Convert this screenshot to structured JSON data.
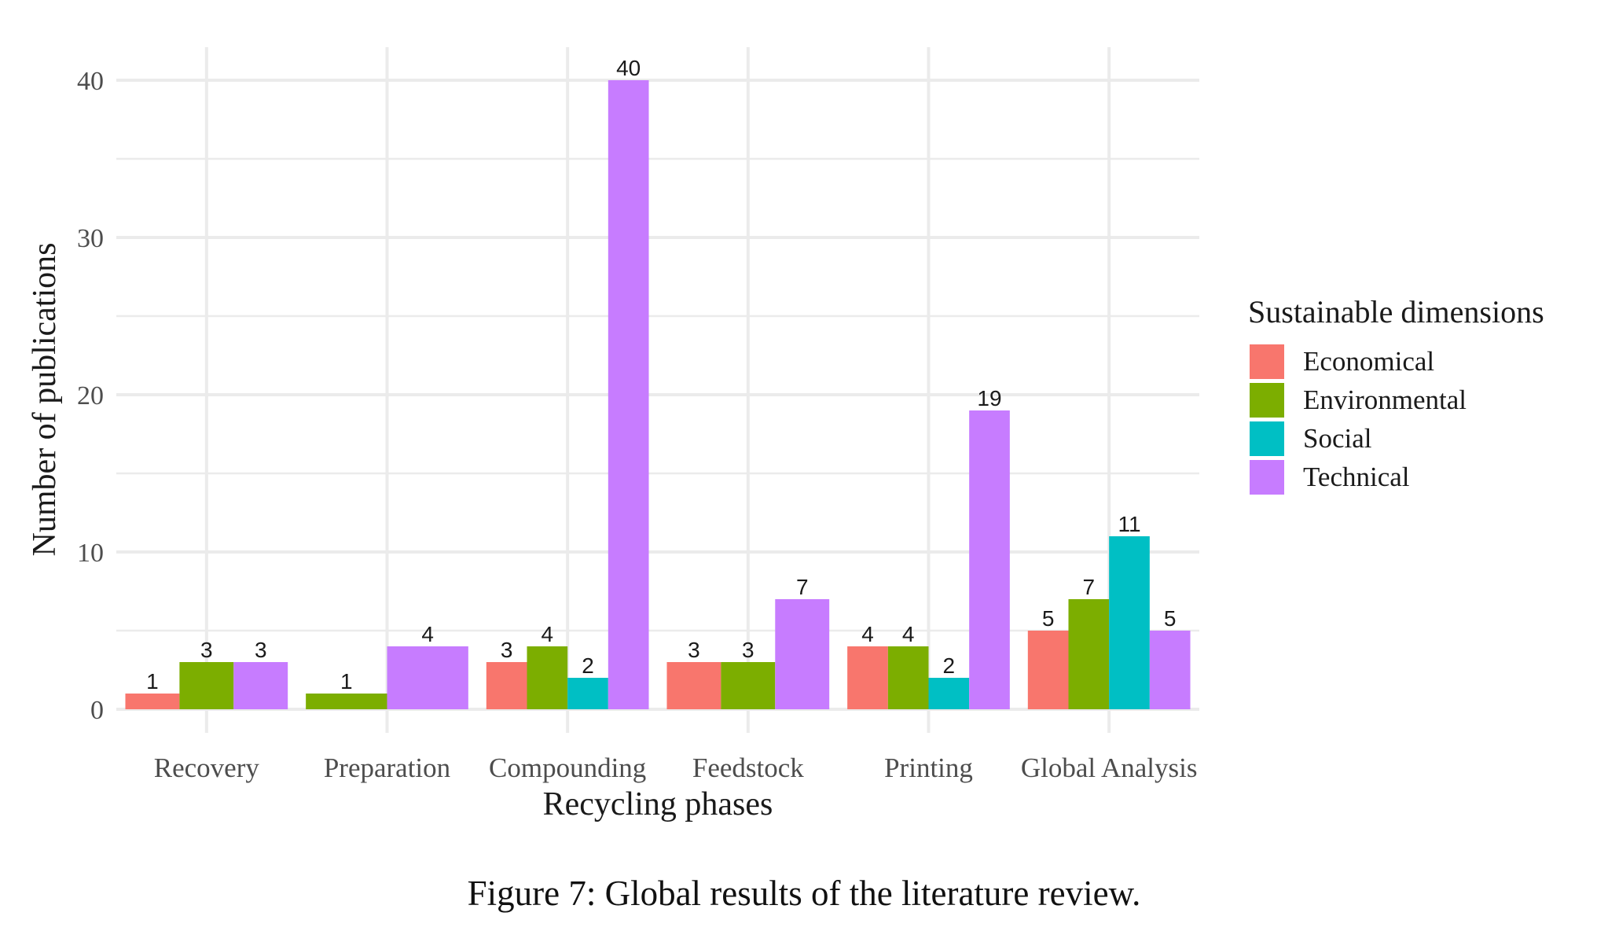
{
  "caption": "Figure 7: Global results of the literature review.",
  "colors": {
    "Economical": "#F8766D",
    "Environmental": "#7CAE00",
    "Social": "#00BFC4",
    "Technical": "#C77CFF"
  },
  "chart_data": {
    "type": "bar",
    "title": "",
    "xlabel": "Recycling phases",
    "ylabel": "Number of publications",
    "ylim": [
      0,
      41
    ],
    "yticks": [
      0,
      10,
      20,
      30,
      40
    ],
    "grid": true,
    "legend_title": "Sustainable dimensions",
    "legend_position": "right",
    "categories": [
      "Recovery",
      "Preparation",
      "Compounding",
      "Feedstock",
      "Printing",
      "Global Analysis"
    ],
    "series": [
      {
        "name": "Economical",
        "values": [
          1,
          null,
          3,
          3,
          4,
          5
        ]
      },
      {
        "name": "Environmental",
        "values": [
          3,
          1,
          4,
          3,
          4,
          7
        ]
      },
      {
        "name": "Social",
        "values": [
          null,
          null,
          2,
          null,
          2,
          11
        ]
      },
      {
        "name": "Technical",
        "values": [
          3,
          4,
          40,
          7,
          19,
          5
        ]
      }
    ]
  }
}
